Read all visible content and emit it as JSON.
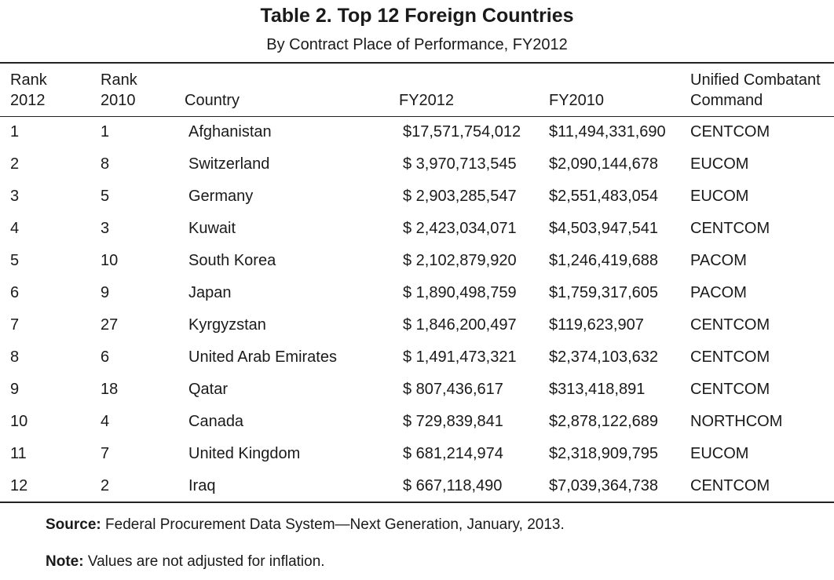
{
  "title": "Table 2. Top 12 Foreign Countries",
  "subtitle": "By Contract Place of Performance, FY2012",
  "headers": {
    "rank2012_a": "Rank",
    "rank2012_b": "2012",
    "rank2010_a": "Rank",
    "rank2010_b": "2010",
    "country": "Country",
    "fy2012": "FY2012",
    "fy2010": "FY2010",
    "command_a": "Unified Combatant",
    "command_b": "Command"
  },
  "rows": [
    {
      "rank2012": "1",
      "rank2010": "1",
      "country": "Afghanistan",
      "fy2012": "$17,571,754,012",
      "fy2010": "$11,494,331,690",
      "command": "CENTCOM"
    },
    {
      "rank2012": "2",
      "rank2010": "8",
      "country": "Switzerland",
      "fy2012": "$ 3,970,713,545",
      "fy2010": "$2,090,144,678",
      "command": "EUCOM"
    },
    {
      "rank2012": "3",
      "rank2010": "5",
      "country": "Germany",
      "fy2012": "$ 2,903,285,547",
      "fy2010": "$2,551,483,054",
      "command": "EUCOM"
    },
    {
      "rank2012": "4",
      "rank2010": "3",
      "country": "Kuwait",
      "fy2012": "$ 2,423,034,071",
      "fy2010": "$4,503,947,541",
      "command": "CENTCOM"
    },
    {
      "rank2012": "5",
      "rank2010": "10",
      "country": "South Korea",
      "fy2012": "$ 2,102,879,920",
      "fy2010": "$1,246,419,688",
      "command": "PACOM"
    },
    {
      "rank2012": "6",
      "rank2010": "9",
      "country": "Japan",
      "fy2012": "$ 1,890,498,759",
      "fy2010": "$1,759,317,605",
      "command": "PACOM"
    },
    {
      "rank2012": "7",
      "rank2010": "27",
      "country": "Kyrgyzstan",
      "fy2012": "$ 1,846,200,497",
      "fy2010": "$119,623,907",
      "command": "CENTCOM"
    },
    {
      "rank2012": "8",
      "rank2010": "6",
      "country": "United Arab Emirates",
      "fy2012": "$ 1,491,473,321",
      "fy2010": "$2,374,103,632",
      "command": "CENTCOM"
    },
    {
      "rank2012": "9",
      "rank2010": "18",
      "country": "Qatar",
      "fy2012": "$ 807,436,617",
      "fy2010": "$313,418,891",
      "command": "CENTCOM"
    },
    {
      "rank2012": "10",
      "rank2010": "4",
      "country": "Canada",
      "fy2012": "$ 729,839,841",
      "fy2010": "$2,878,122,689",
      "command": "NORTHCOM"
    },
    {
      "rank2012": "11",
      "rank2010": "7",
      "country": "United Kingdom",
      "fy2012": "$ 681,214,974",
      "fy2010": "$2,318,909,795",
      "command": "EUCOM"
    },
    {
      "rank2012": "12",
      "rank2010": "2",
      "country": "Iraq",
      "fy2012": "$ 667,118,490",
      "fy2010": "$7,039,364,738",
      "command": "CENTCOM"
    }
  ],
  "source": {
    "label": "Source:",
    "text": "Federal Procurement Data System—Next Generation, January, 2013."
  },
  "note": {
    "label": "Note:",
    "text": "Values are not adjusted for inflation."
  }
}
